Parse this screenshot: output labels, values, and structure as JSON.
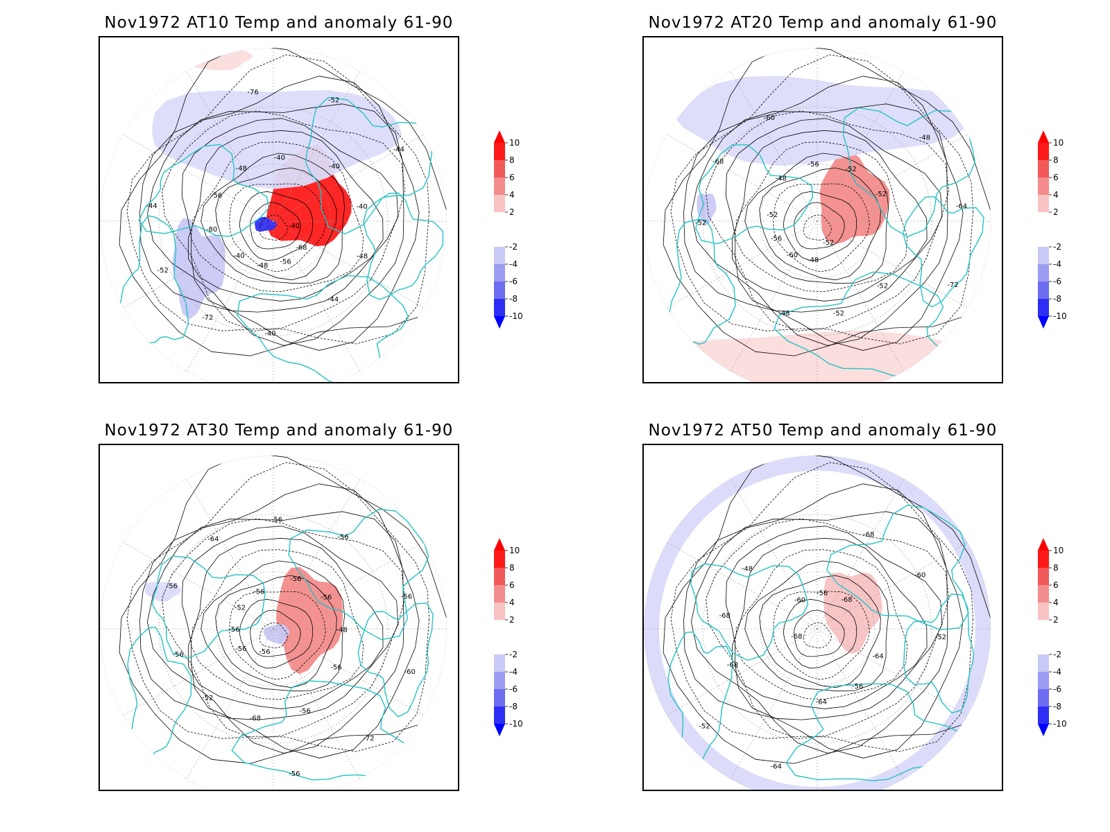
{
  "panels": [
    {
      "title": "Nov1972 AT10 Temp and anomaly 61-90",
      "contour_labels": [
        "-40",
        "-40",
        "-40",
        "-44",
        "-44",
        "-44",
        "-48",
        "-48",
        "-48",
        "-52",
        "-52",
        "-56",
        "-56",
        "-40",
        "-72",
        "-76",
        "-68",
        "-80",
        "-40",
        "-40"
      ],
      "anomaly": [
        {
          "sign": "pos",
          "level": 10
        },
        {
          "sign": "neg",
          "level": 10
        },
        {
          "sign": "neg",
          "level": 4
        },
        {
          "sign": "neg",
          "level": 2
        },
        {
          "sign": "pos",
          "level": 2
        }
      ]
    },
    {
      "title": "Nov1972 AT20 Temp and anomaly 61-90",
      "contour_labels": [
        "-52",
        "-52",
        "-52",
        "-48",
        "-60",
        "-72",
        "-56",
        "-52",
        "-52",
        "-68",
        "-64",
        "-60",
        "-56",
        "-52",
        "-52",
        "-48",
        "-48",
        "-48"
      ],
      "anomaly": [
        {
          "sign": "pos",
          "level": 6
        },
        {
          "sign": "neg",
          "level": 2
        },
        {
          "sign": "neg",
          "level": 4
        },
        {
          "sign": "pos",
          "level": 2
        }
      ]
    },
    {
      "title": "Nov1972 AT30 Temp and anomaly 61-90",
      "contour_labels": [
        "-56",
        "-56",
        "-56",
        "-56",
        "-56",
        "-56",
        "-52",
        "-48",
        "-52",
        "-56",
        "-72",
        "-56",
        "-56",
        "-68",
        "-64",
        "-60",
        "-56",
        "-56",
        "-56",
        "-56",
        "-56"
      ],
      "anomaly": [
        {
          "sign": "pos",
          "level": 6
        },
        {
          "sign": "neg",
          "level": 2
        },
        {
          "sign": "neg",
          "level": 4
        }
      ]
    },
    {
      "title": "Nov1972 AT50 Temp and anomaly 61-90",
      "contour_labels": [
        "-68",
        "-68",
        "-64",
        "-48",
        "-52",
        "-52",
        "-56",
        "-56",
        "-68",
        "-60",
        "-64",
        "-60",
        "-64",
        "-68",
        "-68"
      ],
      "anomaly": [
        {
          "sign": "pos",
          "level": 4
        },
        {
          "sign": "neg",
          "level": 2
        }
      ]
    }
  ],
  "colorbar": {
    "labels": [
      "10",
      "8",
      "6",
      "4",
      "2",
      "-2",
      "-4",
      "-6",
      "-8",
      "-10"
    ],
    "colors": [
      "#ff0000",
      "#f25a5a",
      "#f38c8c",
      "#f7c2c2",
      "#ffffff",
      "#ffffff",
      "#c9c9f6",
      "#9c9cf2",
      "#6d6df2",
      "#2e2ef5",
      "#0000ff"
    ]
  },
  "colors": {
    "coastline": "#23c3c3",
    "contour": "#000000",
    "grid": "#9a9a9a",
    "pos_max": "#ff0000",
    "neg_max": "#0000ff"
  }
}
